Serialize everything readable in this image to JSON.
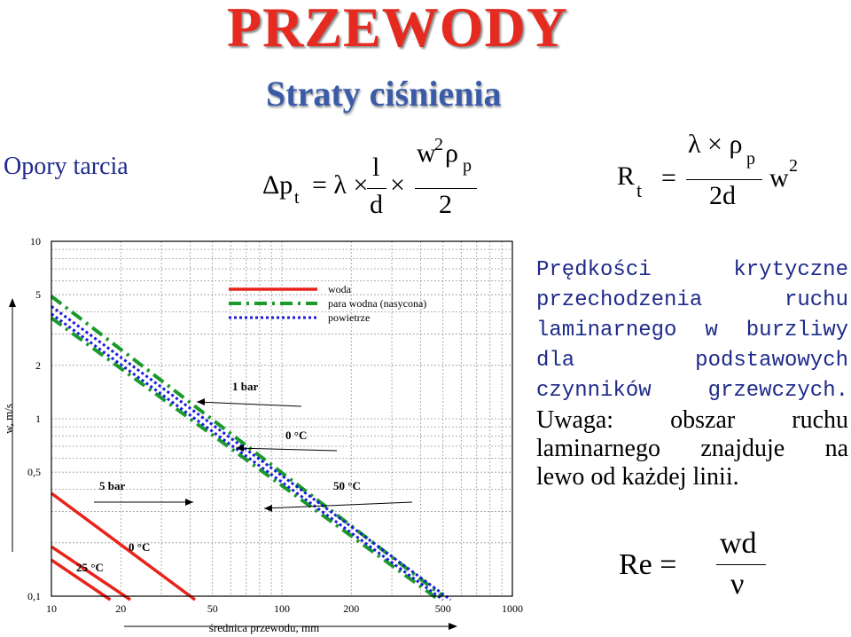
{
  "header": {
    "title": "PRZEWODY",
    "subtitle": "Straty ciśnienia"
  },
  "side_label": "Opory tarcia",
  "formula1": {
    "lhs": "Δp",
    "lhs_sub": "t",
    "eq": "= λ ×",
    "frac1_num": "l",
    "frac1_den": "d",
    "times": "×",
    "frac2_num": "w",
    "frac2_num_sup": "2",
    "frac2_num_rho": "ρ",
    "frac2_num_sub": "p",
    "frac2_den": "2"
  },
  "formula2": {
    "lhs": "R",
    "lhs_sub": "t",
    "eq": "=",
    "num": "λ × ρ",
    "num_sub": "p",
    "den": "2d",
    "rhs": "w",
    "rhs_sup": "2"
  },
  "formula3": {
    "lhs": "Re =",
    "num": "wd",
    "den": "ν"
  },
  "description": {
    "lines": [
      "Prędkości          krytyczne",
      "przechodzenia         ruchu",
      "laminarnego w burzliwy",
      "dla     podstawowych",
      "czynników    grzewczych."
    ],
    "note_lines": [
      "Uwaga:    obszar    ruchu",
      "laminarnego   znajduje   na"
    ],
    "note_last": "lewo od każdej linii."
  },
  "chart_data": {
    "type": "line",
    "xscale": "log",
    "yscale": "log",
    "xlim": [
      10,
      1000
    ],
    "ylim": [
      0.1,
      10
    ],
    "xticks": [
      "10",
      "20",
      "50",
      "100",
      "200",
      "500",
      "1000"
    ],
    "yticks": [
      "0,1",
      "0,5",
      "1",
      "2",
      "5",
      "10"
    ],
    "xlabel": "średnica przewodu, mm",
    "ylabel": "w, m/s",
    "grid": true,
    "legend_placement": "top-right",
    "legend": [
      {
        "label": "woda",
        "color": "#e8231b",
        "style": "solid"
      },
      {
        "label": "para wodna (nasycona)",
        "color": "#1a9a2a",
        "style": "dashdot"
      },
      {
        "label": "powietrze",
        "color": "#1a1ae0",
        "style": "dotted"
      }
    ],
    "annotations": [
      {
        "text": "1 bar",
        "x": 29,
        "y": 1.2
      },
      {
        "text": "0 °C",
        "x": 95,
        "y": 0.75
      },
      {
        "text": "5 bar",
        "x": 21,
        "y": 0.36
      },
      {
        "text": "50 °C",
        "x": 190,
        "y": 0.36
      },
      {
        "text": "0 °C",
        "x": 16,
        "y": 0.165
      },
      {
        "text": "25 °C",
        "x": 13.5,
        "y": 0.125
      }
    ],
    "series": [
      {
        "name": "woda",
        "color": "#e8231b",
        "style": "solid",
        "x": [
          10,
          42
        ],
        "y": [
          0.38,
          0.09
        ]
      },
      {
        "name": "woda",
        "color": "#e8231b",
        "style": "solid",
        "x": [
          10,
          22
        ],
        "y": [
          0.19,
          0.09
        ]
      },
      {
        "name": "woda",
        "color": "#e8231b",
        "style": "solid",
        "x": [
          10,
          18
        ],
        "y": [
          0.16,
          0.09
        ]
      },
      {
        "name": "para wodna (nasycona)",
        "color": "#1a9a2a",
        "style": "dashdot",
        "x": [
          10,
          500
        ],
        "y": [
          4.9,
          0.1
        ]
      },
      {
        "name": "para wodna (nasycona)",
        "color": "#1a9a2a",
        "style": "dashdot",
        "x": [
          10,
          480
        ],
        "y": [
          3.7,
          0.09
        ]
      },
      {
        "name": "powietrze",
        "color": "#1a1ae0",
        "style": "dotted",
        "x": [
          10,
          540
        ],
        "y": [
          4.3,
          0.09
        ]
      },
      {
        "name": "powietrze",
        "color": "#1a1ae0",
        "style": "dotted",
        "x": [
          10,
          500
        ],
        "y": [
          3.9,
          0.09
        ]
      }
    ]
  }
}
